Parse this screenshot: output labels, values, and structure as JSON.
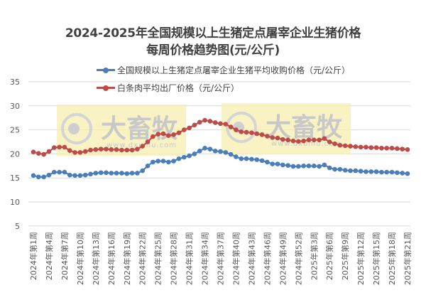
{
  "title": {
    "line1": "2024-2025年全国规模以上生猪定点屠宰企业生猪价格",
    "line2": "每周价格趋势图(元/公斤)"
  },
  "legend": [
    {
      "label": "全国规模以上生猪定点屠宰企业生猪平均收购价格（元/公斤）",
      "color": "#4a7ebb"
    },
    {
      "label": "白条肉平均出厂价格（元/公斤）",
      "color": "#be4b48"
    }
  ],
  "watermark": {
    "brand": "大畜牧",
    "url": "www.dxumu.com"
  },
  "chart_data": {
    "type": "line",
    "title": "2024-2025年全国规模以上生猪定点屠宰企业生猪价格每周价格趋势图(元/公斤)",
    "xlabel": "",
    "ylabel": "",
    "ylim": [
      5,
      35
    ],
    "yticks": [
      5,
      10,
      15,
      20,
      25,
      30,
      35
    ],
    "grid": true,
    "legend_position": "top",
    "x_tick_labels": [
      "2024年第1周",
      "2024年第4周",
      "2024年第7周",
      "2024年第10周",
      "2024年第13周",
      "2024年第16周",
      "2024年第19周",
      "2024年第22周",
      "2024年第25周",
      "2024年第28周",
      "2024年第31周",
      "2024年第34周",
      "2024年第37周",
      "2024年第40周",
      "2024年第43周",
      "2024年第46周",
      "2024年第49周",
      "2024年第52周",
      "2025年第3周",
      "2025年第6周",
      "2025年第9周",
      "2025年第12周",
      "2025年第15周",
      "2025年第18周",
      "2025年第21周"
    ],
    "x_tick_every": 3,
    "x_count": 73,
    "series": [
      {
        "name": "全国规模以上生猪定点屠宰企业生猪平均收购价格（元/公斤）",
        "color": "#4a7ebb",
        "values": [
          15.5,
          15.2,
          15.2,
          15.6,
          16.2,
          16.2,
          16.2,
          15.6,
          15.5,
          15.5,
          15.6,
          15.8,
          16.0,
          16.1,
          16.1,
          16.0,
          16.0,
          16.0,
          15.9,
          16.0,
          16.0,
          16.5,
          17.5,
          18.3,
          18.5,
          18.5,
          18.3,
          18.5,
          19.0,
          19.3,
          19.6,
          20.0,
          20.6,
          21.2,
          21.0,
          20.6,
          20.5,
          20.3,
          19.9,
          19.4,
          19.0,
          19.0,
          18.9,
          18.8,
          18.6,
          18.3,
          17.9,
          17.9,
          17.7,
          17.6,
          17.4,
          17.4,
          17.5,
          17.5,
          17.5,
          17.4,
          17.7,
          17.1,
          16.8,
          16.8,
          16.6,
          16.5,
          16.5,
          16.4,
          16.3,
          16.3,
          16.3,
          16.2,
          16.2,
          16.2,
          16.1,
          16.0,
          15.9
        ]
      },
      {
        "name": "白条肉平均出厂价格（元/公斤）",
        "color": "#be4b48",
        "values": [
          20.4,
          20.1,
          19.9,
          20.5,
          21.3,
          21.4,
          21.4,
          20.7,
          20.3,
          20.3,
          20.5,
          20.8,
          20.9,
          21.0,
          21.0,
          20.9,
          20.9,
          20.8,
          20.8,
          20.8,
          21.0,
          21.6,
          22.5,
          23.6,
          24.1,
          24.2,
          23.8,
          24.0,
          24.4,
          25.0,
          25.4,
          26.0,
          26.6,
          27.0,
          26.8,
          26.5,
          26.3,
          26.2,
          25.6,
          25.0,
          24.6,
          24.5,
          24.4,
          24.2,
          24.0,
          23.7,
          23.4,
          23.3,
          23.0,
          22.9,
          22.7,
          22.6,
          22.7,
          22.9,
          22.9,
          22.9,
          23.2,
          22.5,
          22.1,
          21.8,
          21.7,
          21.6,
          21.5,
          21.4,
          21.4,
          21.3,
          21.3,
          21.2,
          21.2,
          21.2,
          21.1,
          21.0,
          20.9
        ]
      }
    ]
  }
}
